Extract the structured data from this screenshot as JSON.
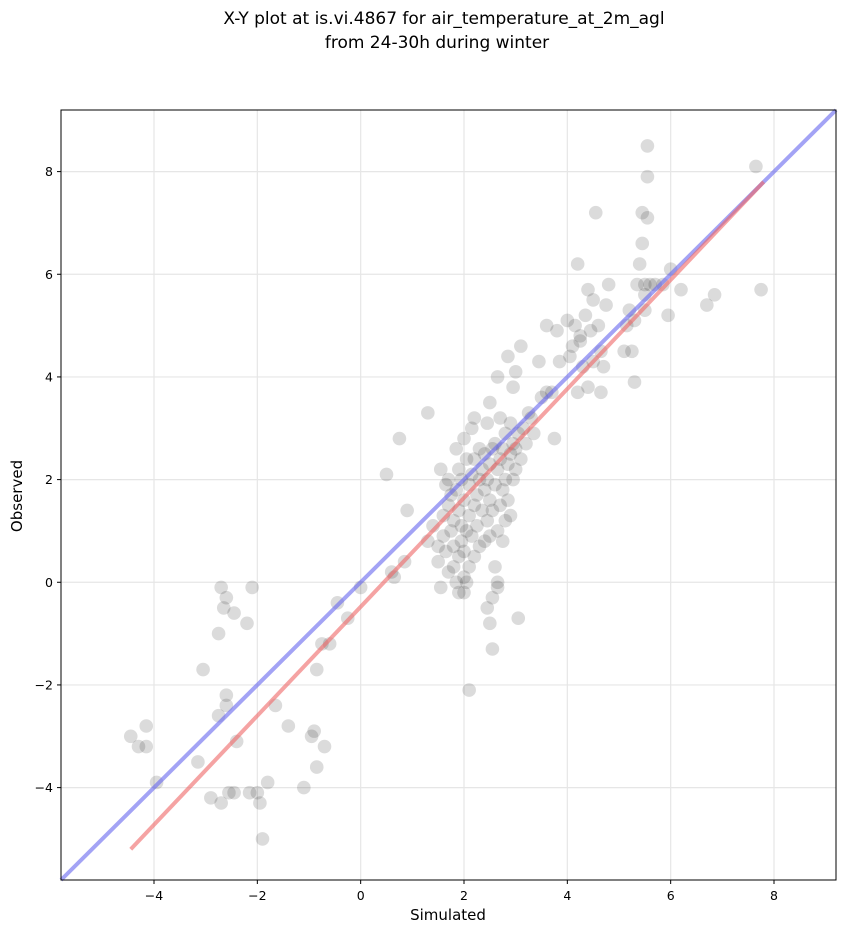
{
  "chart_data": {
    "type": "scatter",
    "title": "X-Y plot at is.vi.4867 for air_temperature_at_2m_agl",
    "subtitle": "from 24-30h during winter",
    "xlabel": "Simulated",
    "ylabel": "Observed",
    "xlim": [
      -5.8,
      9.2
    ],
    "ylim": [
      -5.8,
      9.2
    ],
    "xticks": [
      -4,
      -2,
      0,
      2,
      4,
      6,
      8
    ],
    "yticks": [
      -4,
      -2,
      0,
      2,
      4,
      6,
      8
    ],
    "xtick_labels": [
      "−4",
      "−2",
      "0",
      "2",
      "4",
      "6",
      "8"
    ],
    "ytick_labels": [
      "−4",
      "−2",
      "0",
      "2",
      "4",
      "6",
      "8"
    ],
    "grid": true,
    "colors": {
      "points": "#000000",
      "identity_line": "#6666ee",
      "fit_line": "#ee6666",
      "grid": "#e6e6e6"
    },
    "identity_line": {
      "x": [
        -5.8,
        9.2
      ],
      "y": [
        -5.8,
        9.2
      ]
    },
    "fit_line": {
      "x": [
        -4.45,
        7.8
      ],
      "y": [
        -5.2,
        7.8
      ]
    },
    "points": [
      [
        -4.45,
        -3.0
      ],
      [
        -4.3,
        -3.2
      ],
      [
        -4.15,
        -2.8
      ],
      [
        -4.15,
        -3.2
      ],
      [
        -3.95,
        -3.9
      ],
      [
        -3.15,
        -3.5
      ],
      [
        -3.05,
        -1.7
      ],
      [
        -2.9,
        -4.2
      ],
      [
        -2.75,
        -1.0
      ],
      [
        -2.75,
        -2.6
      ],
      [
        -2.7,
        -0.1
      ],
      [
        -2.7,
        -4.3
      ],
      [
        -2.65,
        -0.5
      ],
      [
        -2.6,
        -0.3
      ],
      [
        -2.6,
        -2.2
      ],
      [
        -2.6,
        -2.4
      ],
      [
        -2.55,
        -4.1
      ],
      [
        -2.45,
        -4.1
      ],
      [
        -2.45,
        -0.6
      ],
      [
        -2.4,
        -3.1
      ],
      [
        -2.2,
        -0.8
      ],
      [
        -2.15,
        -4.1
      ],
      [
        -2.1,
        -0.1
      ],
      [
        -2.0,
        -4.1
      ],
      [
        -1.95,
        -4.3
      ],
      [
        -1.9,
        -5.0
      ],
      [
        -1.8,
        -3.9
      ],
      [
        -1.65,
        -2.4
      ],
      [
        -1.4,
        -2.8
      ],
      [
        -1.1,
        -4.0
      ],
      [
        -0.95,
        -3.0
      ],
      [
        -0.9,
        -2.9
      ],
      [
        -0.85,
        -3.6
      ],
      [
        -0.85,
        -1.7
      ],
      [
        -0.75,
        -1.2
      ],
      [
        -0.7,
        -3.2
      ],
      [
        -0.6,
        -1.2
      ],
      [
        -0.45,
        -0.4
      ],
      [
        -0.25,
        -0.7
      ],
      [
        0.0,
        -0.1
      ],
      [
        0.5,
        2.1
      ],
      [
        0.6,
        0.2
      ],
      [
        0.65,
        0.1
      ],
      [
        0.75,
        2.8
      ],
      [
        0.85,
        0.4
      ],
      [
        0.9,
        1.4
      ],
      [
        1.3,
        0.8
      ],
      [
        1.3,
        3.3
      ],
      [
        1.4,
        1.1
      ],
      [
        1.5,
        0.7
      ],
      [
        1.5,
        0.4
      ],
      [
        1.55,
        2.2
      ],
      [
        1.55,
        -0.1
      ],
      [
        1.6,
        1.3
      ],
      [
        1.6,
        0.9
      ],
      [
        1.65,
        1.9
      ],
      [
        1.65,
        0.6
      ],
      [
        1.7,
        1.5
      ],
      [
        1.7,
        0.2
      ],
      [
        1.7,
        2.0
      ],
      [
        1.75,
        1.0
      ],
      [
        1.75,
        1.7
      ],
      [
        1.8,
        0.3
      ],
      [
        1.8,
        0.7
      ],
      [
        1.8,
        1.2
      ],
      [
        1.85,
        2.6
      ],
      [
        1.85,
        1.8
      ],
      [
        1.85,
        0.0
      ],
      [
        1.9,
        -0.2
      ],
      [
        1.9,
        0.5
      ],
      [
        1.9,
        1.4
      ],
      [
        1.9,
        2.2
      ],
      [
        1.95,
        0.8
      ],
      [
        1.95,
        1.1
      ],
      [
        1.95,
        2.0
      ],
      [
        2.0,
        -0.2
      ],
      [
        2.0,
        0.1
      ],
      [
        2.0,
        0.6
      ],
      [
        2.0,
        1.6
      ],
      [
        2.0,
        2.8
      ],
      [
        2.05,
        0.0
      ],
      [
        2.05,
        1.0
      ],
      [
        2.05,
        2.4
      ],
      [
        2.1,
        -2.1
      ],
      [
        2.1,
        0.3
      ],
      [
        2.1,
        1.3
      ],
      [
        2.1,
        1.9
      ],
      [
        2.15,
        0.9
      ],
      [
        2.15,
        2.1
      ],
      [
        2.15,
        3.0
      ],
      [
        2.2,
        0.5
      ],
      [
        2.2,
        1.5
      ],
      [
        2.2,
        2.4
      ],
      [
        2.2,
        3.2
      ],
      [
        2.25,
        1.1
      ],
      [
        2.25,
        1.7
      ],
      [
        2.3,
        0.7
      ],
      [
        2.3,
        2.0
      ],
      [
        2.3,
        2.6
      ],
      [
        2.35,
        1.4
      ],
      [
        2.35,
        2.2
      ],
      [
        2.4,
        0.8
      ],
      [
        2.4,
        1.8
      ],
      [
        2.4,
        2.5
      ],
      [
        2.45,
        -0.5
      ],
      [
        2.45,
        1.2
      ],
      [
        2.45,
        2.0
      ],
      [
        2.45,
        3.1
      ],
      [
        2.5,
        -0.8
      ],
      [
        2.5,
        0.9
      ],
      [
        2.5,
        1.6
      ],
      [
        2.5,
        2.3
      ],
      [
        2.5,
        3.5
      ],
      [
        2.55,
        -0.3
      ],
      [
        2.55,
        -1.3
      ],
      [
        2.55,
        1.4
      ],
      [
        2.55,
        2.6
      ],
      [
        2.6,
        0.3
      ],
      [
        2.6,
        1.9
      ],
      [
        2.6,
        2.7
      ],
      [
        2.65,
        -0.1
      ],
      [
        2.65,
        0.0
      ],
      [
        2.65,
        1.0
      ],
      [
        2.65,
        2.2
      ],
      [
        2.65,
        4.0
      ],
      [
        2.7,
        1.5
      ],
      [
        2.7,
        2.4
      ],
      [
        2.7,
        3.2
      ],
      [
        2.75,
        0.8
      ],
      [
        2.75,
        1.8
      ],
      [
        2.75,
        2.6
      ],
      [
        2.8,
        1.2
      ],
      [
        2.8,
        2.0
      ],
      [
        2.8,
        2.9
      ],
      [
        2.85,
        1.6
      ],
      [
        2.85,
        2.3
      ],
      [
        2.85,
        4.4
      ],
      [
        2.9,
        1.3
      ],
      [
        2.9,
        2.5
      ],
      [
        2.9,
        3.1
      ],
      [
        2.95,
        2.0
      ],
      [
        2.95,
        2.7
      ],
      [
        2.95,
        3.8
      ],
      [
        3.0,
        2.2
      ],
      [
        3.0,
        4.1
      ],
      [
        3.0,
        2.6
      ],
      [
        3.05,
        -0.7
      ],
      [
        3.05,
        2.9
      ],
      [
        3.1,
        4.6
      ],
      [
        3.1,
        2.4
      ],
      [
        3.15,
        3.0
      ],
      [
        3.2,
        2.7
      ],
      [
        3.25,
        3.3
      ],
      [
        3.3,
        3.2
      ],
      [
        3.35,
        2.9
      ],
      [
        3.45,
        4.3
      ],
      [
        3.5,
        3.6
      ],
      [
        3.6,
        3.7
      ],
      [
        3.6,
        5.0
      ],
      [
        3.7,
        3.7
      ],
      [
        3.75,
        2.8
      ],
      [
        3.8,
        4.9
      ],
      [
        3.85,
        4.3
      ],
      [
        4.0,
        5.1
      ],
      [
        4.05,
        4.4
      ],
      [
        4.1,
        4.6
      ],
      [
        4.15,
        5.0
      ],
      [
        4.2,
        3.7
      ],
      [
        4.2,
        6.2
      ],
      [
        4.25,
        4.7
      ],
      [
        4.25,
        4.8
      ],
      [
        4.3,
        4.2
      ],
      [
        4.35,
        5.2
      ],
      [
        4.4,
        3.8
      ],
      [
        4.4,
        5.7
      ],
      [
        4.45,
        4.9
      ],
      [
        4.5,
        4.3
      ],
      [
        4.5,
        5.5
      ],
      [
        4.55,
        7.2
      ],
      [
        4.6,
        5.0
      ],
      [
        4.65,
        3.7
      ],
      [
        4.65,
        4.5
      ],
      [
        4.7,
        4.2
      ],
      [
        4.75,
        5.4
      ],
      [
        4.8,
        5.8
      ],
      [
        5.1,
        4.5
      ],
      [
        5.15,
        5.0
      ],
      [
        5.2,
        5.3
      ],
      [
        5.25,
        4.5
      ],
      [
        5.3,
        5.1
      ],
      [
        5.3,
        3.9
      ],
      [
        5.35,
        5.8
      ],
      [
        5.4,
        6.2
      ],
      [
        5.45,
        7.2
      ],
      [
        5.45,
        6.6
      ],
      [
        5.5,
        5.3
      ],
      [
        5.5,
        5.6
      ],
      [
        5.5,
        5.8
      ],
      [
        5.55,
        8.5
      ],
      [
        5.55,
        7.9
      ],
      [
        5.55,
        7.1
      ],
      [
        5.6,
        5.8
      ],
      [
        5.7,
        5.8
      ],
      [
        5.85,
        5.8
      ],
      [
        5.95,
        5.2
      ],
      [
        6.0,
        6.1
      ],
      [
        6.2,
        5.7
      ],
      [
        6.7,
        5.4
      ],
      [
        6.85,
        5.6
      ],
      [
        7.65,
        8.1
      ],
      [
        7.75,
        5.7
      ]
    ]
  }
}
